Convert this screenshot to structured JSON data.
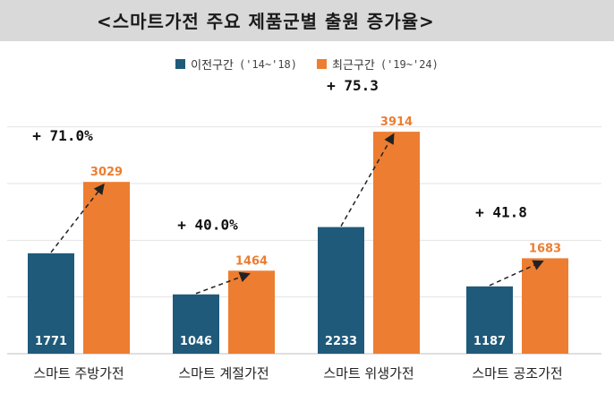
{
  "title": "<스마트가전 주요 제품군별 출원 증가율>",
  "legend": [
    {
      "name": "이전구간",
      "period": "('14~'18)",
      "color": "#1f5a7a"
    },
    {
      "name": "최근구간",
      "period": "('19~'24)",
      "color": "#ed7d31"
    }
  ],
  "chart_data": {
    "type": "bar",
    "title": "<스마트가전 주요 제품군별 출원 증가율>",
    "categories": [
      "스마트 주방가전",
      "스마트 계절가전",
      "스마트 위생가전",
      "스마트 공조가전"
    ],
    "series": [
      {
        "name": "이전구간('14~'18)",
        "values": [
          1771,
          1046,
          2233,
          1187
        ]
      },
      {
        "name": "최근구간('19~'24)",
        "values": [
          3029,
          1464,
          3914,
          1683
        ]
      }
    ],
    "growth_labels": [
      "+ 71.0%",
      "+ 40.0%",
      "+ 75.3",
      "+ 41.8"
    ],
    "ylim": [
      0,
      4500
    ],
    "grid": true,
    "legend_position": "top-center"
  }
}
